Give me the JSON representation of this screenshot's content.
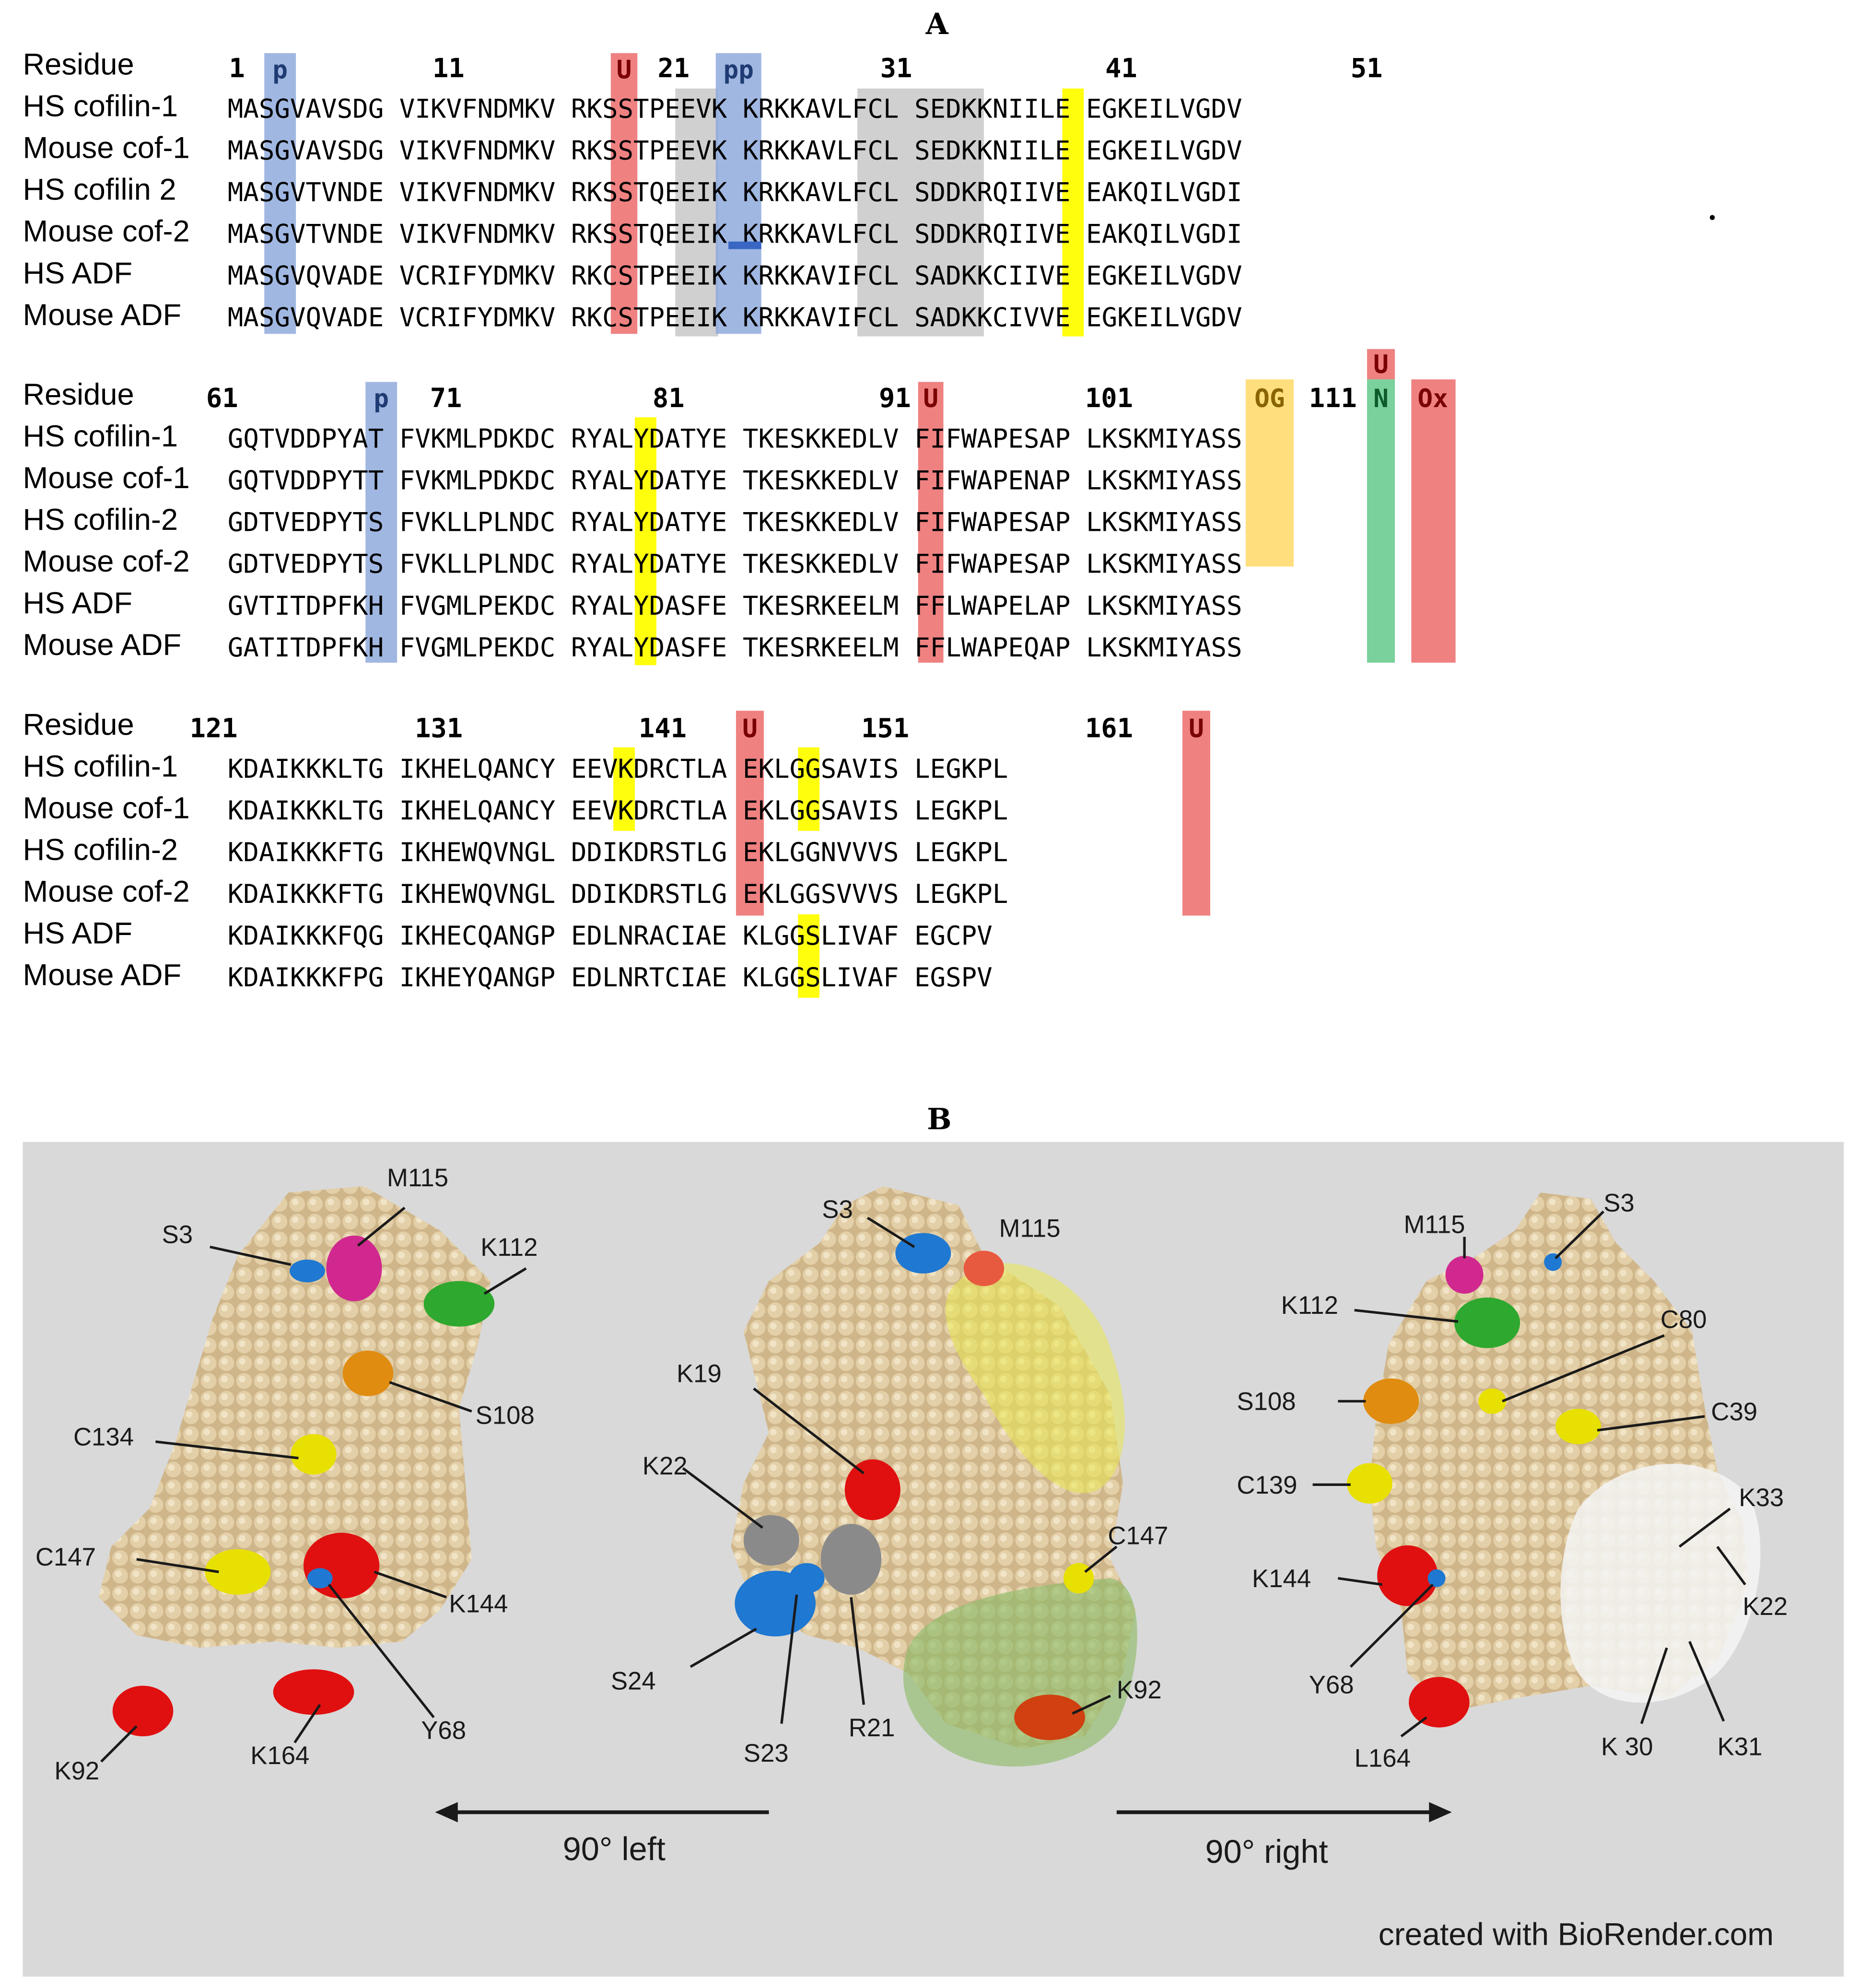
{
  "panel_a": {
    "letter": "A",
    "blocks": [
      {
        "header_label": "Residue",
        "numbers": [
          "1",
          "11",
          "21",
          "31",
          "41",
          "51"
        ],
        "marks": {
          "p": "p",
          "u": "U",
          "pp": "pp"
        },
        "rows": [
          {
            "label": "HS cofilin-1",
            "seq": "MASGVAVSDG VIKVFNDMKV RKSSTPEEVK KRKKAVLFCL SEDKKNIILE EGKEILVGDV"
          },
          {
            "label": "Mouse cof-1",
            "seq": "MASGVAVSDG VIKVFNDMKV RKSSTPEEVK KRKKAVLFCL SEDKKNIILE EGKEILVGDV"
          },
          {
            "label": "HS cofilin 2",
            "seq": "MASGVTVNDE VIKVFNDMKV RKSSTQEEIK KRKKAVLFCL SDDKRQIIVE EAKQILVGDI"
          },
          {
            "label": "Mouse cof-2",
            "seq": "MASGVTVNDE VIKVFNDMKV RKSSTQEEIK KRKKAVLFCL SDDKRQIIVE EAKQILVGDI"
          },
          {
            "label": "HS ADF",
            "seq": "MASGVQVADE VCRIFYDMKV RKCSTPEEIK KRKKAVIFCL SADKKCIIVE EGKEILVGDV"
          },
          {
            "label": "Mouse ADF",
            "seq": "MASGVQVADE VCRIFYDMKV RKCSTPEEIK KRKKAVIFCL SADKKCIVVE EGKEILVGDV"
          }
        ]
      },
      {
        "header_label": "Residue",
        "numbers": [
          "61",
          "71",
          "81",
          "91",
          "101",
          "111"
        ],
        "marks": {
          "p": "p",
          "u91": "U",
          "og": "OG",
          "u113": "U",
          "n": "N",
          "ox": "Ox"
        },
        "rows": [
          {
            "label": "HS cofilin-1",
            "seq": "GQTVDDPYAT FVKMLPDKDC RYALYDATYE TKESKKEDLV FIFWAPESAP LKSKMIYASS"
          },
          {
            "label": "Mouse cof-1",
            "seq": "GQTVDDPYTT FVKMLPDKDC RYALYDATYE TKESKKEDLV FIFWAPENAP LKSKMIYASS"
          },
          {
            "label": "HS cofilin-2",
            "seq": "GDTVEDPYTS FVKLLPLNDC RYALYDATYE TKESKKEDLV FIFWAPESAP LKSKMIYASS"
          },
          {
            "label": "Mouse cof-2",
            "seq": "GDTVEDPYTS FVKLLPLNDC RYALYDATYE TKESKKEDLV FIFWAPESAP LKSKMIYASS"
          },
          {
            "label": "HS ADF",
            "seq": "GVTITDPFKH FVGMLPEKDC RYALYDASFE TKESRKEELM FFLWAPELAP LKSKMIYASS"
          },
          {
            "label": "Mouse ADF",
            "seq": "GATITDPFKH FVGMLPEKDC RYALYDASFE TKESRKEELM FFLWAPEQAP LKSKMIYASS"
          }
        ]
      },
      {
        "header_label": "Residue",
        "numbers": [
          "121",
          "131",
          "141",
          "151",
          "161"
        ],
        "marks": {
          "u144": "U",
          "u164": "U"
        },
        "rows": [
          {
            "label": "HS cofilin-1",
            "seq": "KDAIKKKLTG IKHELQANCY EEVKDRCTLA EKLGGSAVIS LEGKPL"
          },
          {
            "label": "Mouse cof-1",
            "seq": "KDAIKKKLTG IKHELQANCY EEVKDRCTLA EKLGGSAVIS LEGKPL"
          },
          {
            "label": "HS cofilin-2",
            "seq": "KDAIKKKFTG IKHEWQVNGL DDIKDRSTLG EKLGGNVVVS LEGKPL"
          },
          {
            "label": "Mouse cof-2",
            "seq": "KDAIKKKFTG IKHEWQVNGL DDIKDRSTLG EKLGGSVVVS LEGKPL"
          },
          {
            "label": "HS ADF",
            "seq": "KDAIKKKFQG IKHECQANGP EDLNRACIAE KLGGSLIVAF EGCPV"
          },
          {
            "label": "Mouse ADF",
            "seq": "KDAIKKKFPG IKHEYQANGP EDLNRTCIAE KLGGSLIVAF EGSPV"
          }
        ]
      }
    ]
  },
  "panel_b": {
    "letter": "B",
    "left_labels": [
      "M115",
      "S3",
      "K112",
      "S108",
      "C134",
      "C147",
      "K144",
      "Y68",
      "K92",
      "K164"
    ],
    "center_labels": [
      "S3",
      "M115",
      "K19",
      "K22",
      "C147",
      "S24",
      "S23",
      "R21",
      "K92"
    ],
    "right_labels": [
      "S3",
      "M115",
      "K112",
      "C80",
      "S108",
      "C39",
      "C139",
      "K33",
      "K22",
      "K144",
      "Y68",
      "L164",
      "K 30",
      "K31"
    ],
    "arrow_left": "90° left",
    "arrow_right": "90° right",
    "credit": "created with BioRender.com",
    "colors": {
      "background": "#d9d9d9",
      "protein": "#d8c29a",
      "blue": "#1f78d1",
      "magenta": "#d0288f",
      "green": "#2ea82e",
      "orange": "#e08c10",
      "yellow": "#e8e000",
      "red": "#e01010",
      "grey": "#8a8a8a"
    }
  }
}
